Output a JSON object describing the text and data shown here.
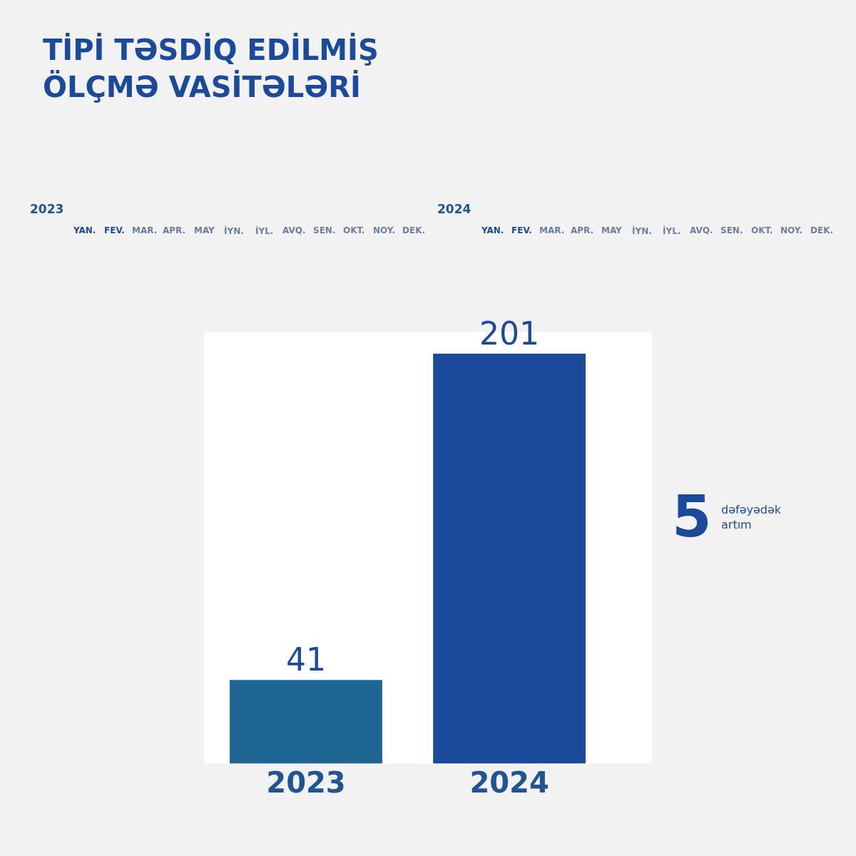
{
  "chart_data": {
    "type": "bar",
    "title": "TİPİ TƏSDİQ EDİLMİŞ\nÖLÇMƏ VASİTƏLƏRİ",
    "categories": [
      "2023",
      "2024"
    ],
    "values": [
      41,
      201
    ],
    "colors": [
      "#1f6594",
      "#1c4a9a"
    ],
    "data_labels": true,
    "annotations": [
      "2023",
      "YAN.",
      "FEV.",
      "MAR.",
      "APR.",
      "MAY",
      "İYN.",
      "İYL.",
      "AVQ.",
      "SEN.",
      "OKT.",
      "NOY.",
      "DEK.",
      "2024",
      "YAN.",
      "FEV.",
      "MAR.",
      "APR.",
      "MAY",
      "İYN.",
      "İYL.",
      "AVQ.",
      "SEN.",
      "OKT.",
      "NOY.",
      "DEK.",
      "5",
      "dəfəyədək artım"
    ]
  }
}
